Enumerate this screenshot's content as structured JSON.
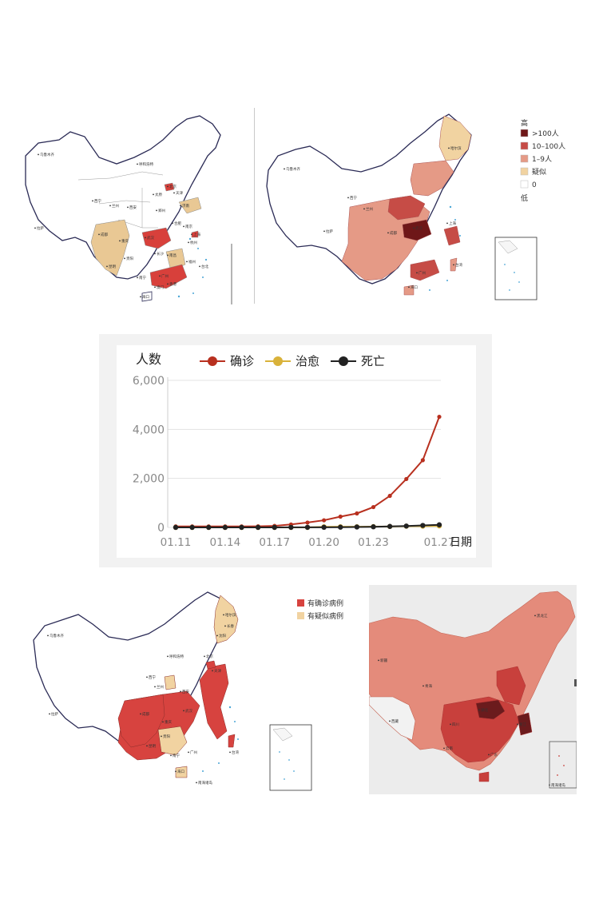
{
  "map_top_left": {
    "labels": [
      "乌鲁木齐",
      "呼和浩特",
      "北京",
      "天津",
      "西宁",
      "兰州",
      "西安",
      "太原",
      "济南",
      "郑州",
      "成都",
      "重庆",
      "武汉",
      "合肥",
      "南京",
      "上海",
      "杭州",
      "南昌",
      "长沙",
      "贵阳",
      "昆明",
      "南宁",
      "广州",
      "福州",
      "台北",
      "海口",
      "拉萨",
      "香港",
      "澳门"
    ]
  },
  "map_top_right": {
    "legend": {
      "high": "高",
      "low": "低",
      "items": [
        {
          "label": ">100人",
          "color": "#6e1718"
        },
        {
          "label": "10–100人",
          "color": "#c64c46"
        },
        {
          "label": "1–9人",
          "color": "#e59a86"
        },
        {
          "label": "疑似",
          "color": "#f1d3a1"
        },
        {
          "label": "0",
          "color": "#ffffff"
        }
      ]
    },
    "labels": [
      "乌鲁木齐",
      "西宁",
      "兰州",
      "拉萨",
      "成都",
      "武汉",
      "上海",
      "台湾",
      "广州",
      "海口",
      "哈尔滨"
    ]
  },
  "chart": {
    "ylabel": "人数",
    "xlabel": "日期",
    "legend": [
      {
        "name": "确诊",
        "color": "#b8301f"
      },
      {
        "name": "治愈",
        "color": "#d9b23a"
      },
      {
        "name": "死亡",
        "color": "#222222"
      }
    ],
    "yticks": [
      "6,000",
      "4,000",
      "2,000",
      "0"
    ],
    "xticks": [
      "01.11",
      "01.14",
      "01.17",
      "01.20",
      "01.23",
      "01.27"
    ]
  },
  "chart_data": {
    "type": "line",
    "x": [
      "01.11",
      "01.12",
      "01.13",
      "01.14",
      "01.15",
      "01.16",
      "01.17",
      "01.18",
      "01.19",
      "01.20",
      "01.21",
      "01.22",
      "01.23",
      "01.24",
      "01.25",
      "01.26",
      "01.27"
    ],
    "series": [
      {
        "name": "确诊",
        "values": [
          41,
          41,
          41,
          41,
          41,
          45,
          62,
          121,
          198,
          291,
          440,
          571,
          830,
          1287,
          1975,
          2744,
          4515
        ]
      },
      {
        "name": "治愈",
        "values": [
          0,
          0,
          0,
          0,
          0,
          0,
          0,
          0,
          0,
          25,
          28,
          28,
          34,
          38,
          49,
          51,
          60
        ]
      },
      {
        "name": "死亡",
        "values": [
          1,
          1,
          1,
          1,
          2,
          2,
          2,
          3,
          3,
          6,
          9,
          17,
          25,
          41,
          56,
          80,
          106
        ]
      }
    ],
    "ylabel": "人数",
    "xlabel": "日期",
    "ylim": [
      0,
      6000
    ],
    "yticks": [
      0,
      2000,
      4000,
      6000
    ],
    "legend_position": "top",
    "grid": true
  },
  "map_bottom_left": {
    "legend": [
      {
        "label": "有确诊病例",
        "color": "#d7433f"
      },
      {
        "label": "有疑似病例",
        "color": "#f1d3a1"
      }
    ],
    "labels": [
      "乌鲁木齐",
      "呼和浩特",
      "北京",
      "天津",
      "哈尔滨",
      "长春",
      "沈阳",
      "西宁",
      "兰州",
      "西安",
      "成都",
      "重庆",
      "武汉",
      "贵阳",
      "昆明",
      "南宁",
      "广州",
      "海口",
      "拉萨",
      "台湾",
      "南海诸岛"
    ]
  },
  "map_bottom_right": {
    "labels": [
      "新疆",
      "西藏",
      "青海",
      "四川",
      "云南",
      "黑龙江",
      "湖北",
      "浙江",
      "广东",
      "南海诸岛"
    ]
  }
}
